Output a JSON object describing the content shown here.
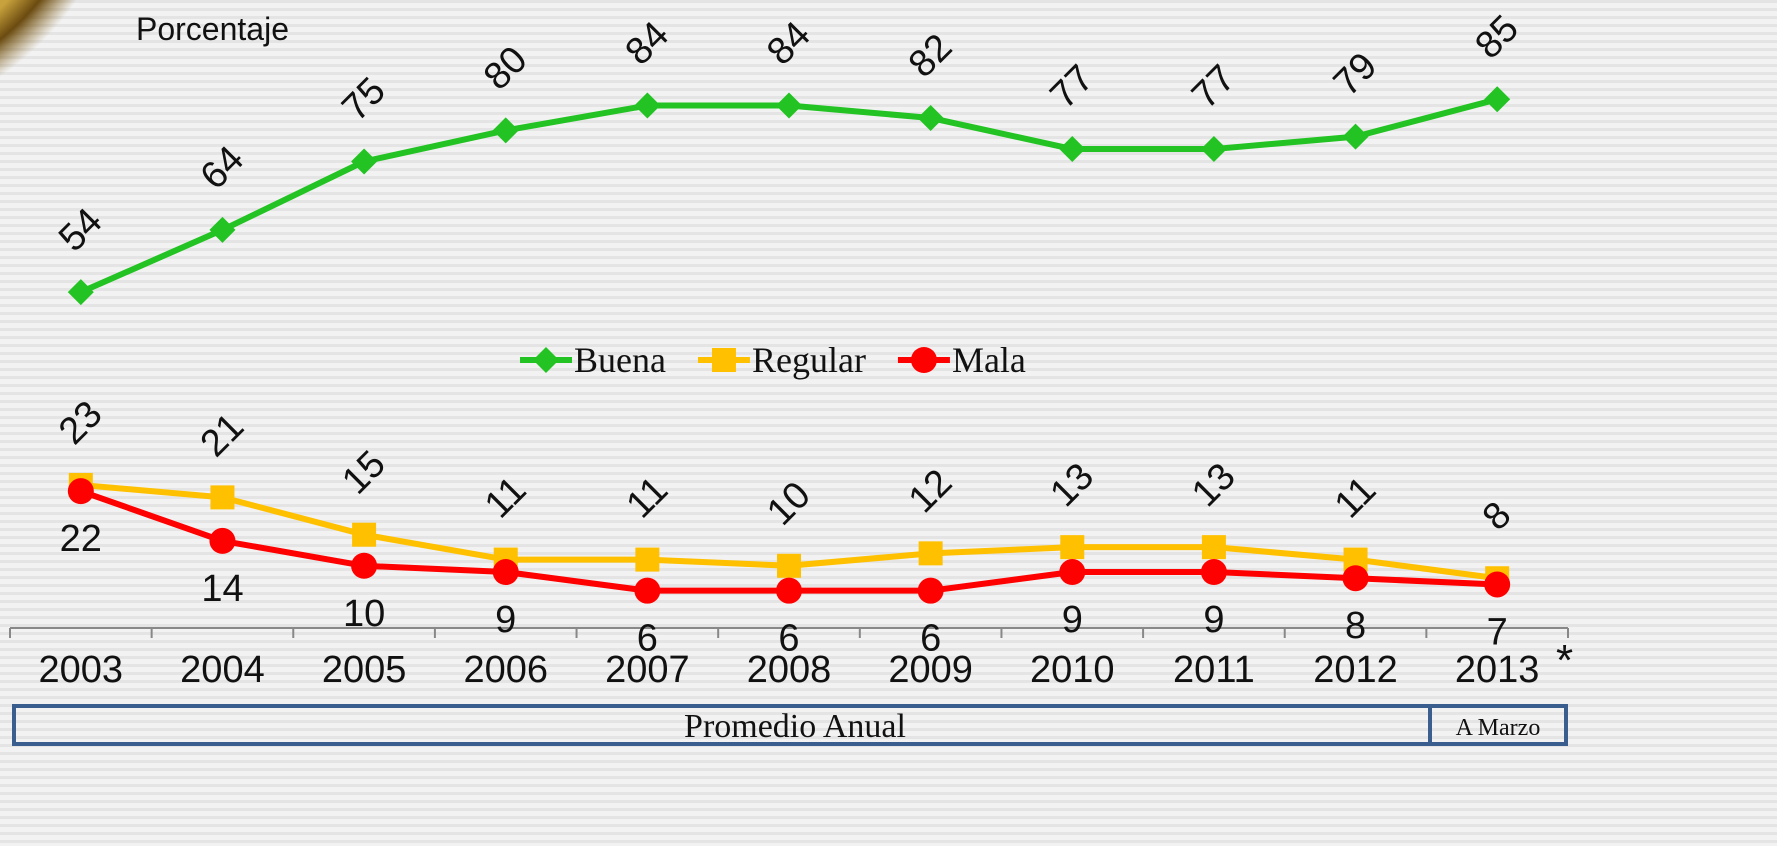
{
  "chart_data": {
    "type": "line",
    "y_label": "Porcentaje",
    "categories": [
      "2003",
      "2004",
      "2005",
      "2006",
      "2007",
      "2008",
      "2009",
      "2010",
      "2011",
      "2012",
      "2013"
    ],
    "x_note": "*",
    "series": [
      {
        "name": "Buena",
        "color": "#22c322",
        "marker": "diamond",
        "values": [
          54,
          64,
          75,
          80,
          84,
          84,
          82,
          77,
          77,
          79,
          85
        ]
      },
      {
        "name": "Regular",
        "color": "#ffc000",
        "marker": "square",
        "values": [
          23,
          21,
          15,
          11,
          11,
          10,
          12,
          13,
          13,
          11,
          8
        ]
      },
      {
        "name": "Mala",
        "color": "#ff0000",
        "marker": "circle",
        "values": [
          22,
          14,
          10,
          9,
          6,
          6,
          6,
          9,
          9,
          8,
          7
        ]
      }
    ],
    "ylim": [
      0,
      100
    ],
    "period_labels": [
      "Promedio Anual",
      "A Marzo"
    ]
  }
}
